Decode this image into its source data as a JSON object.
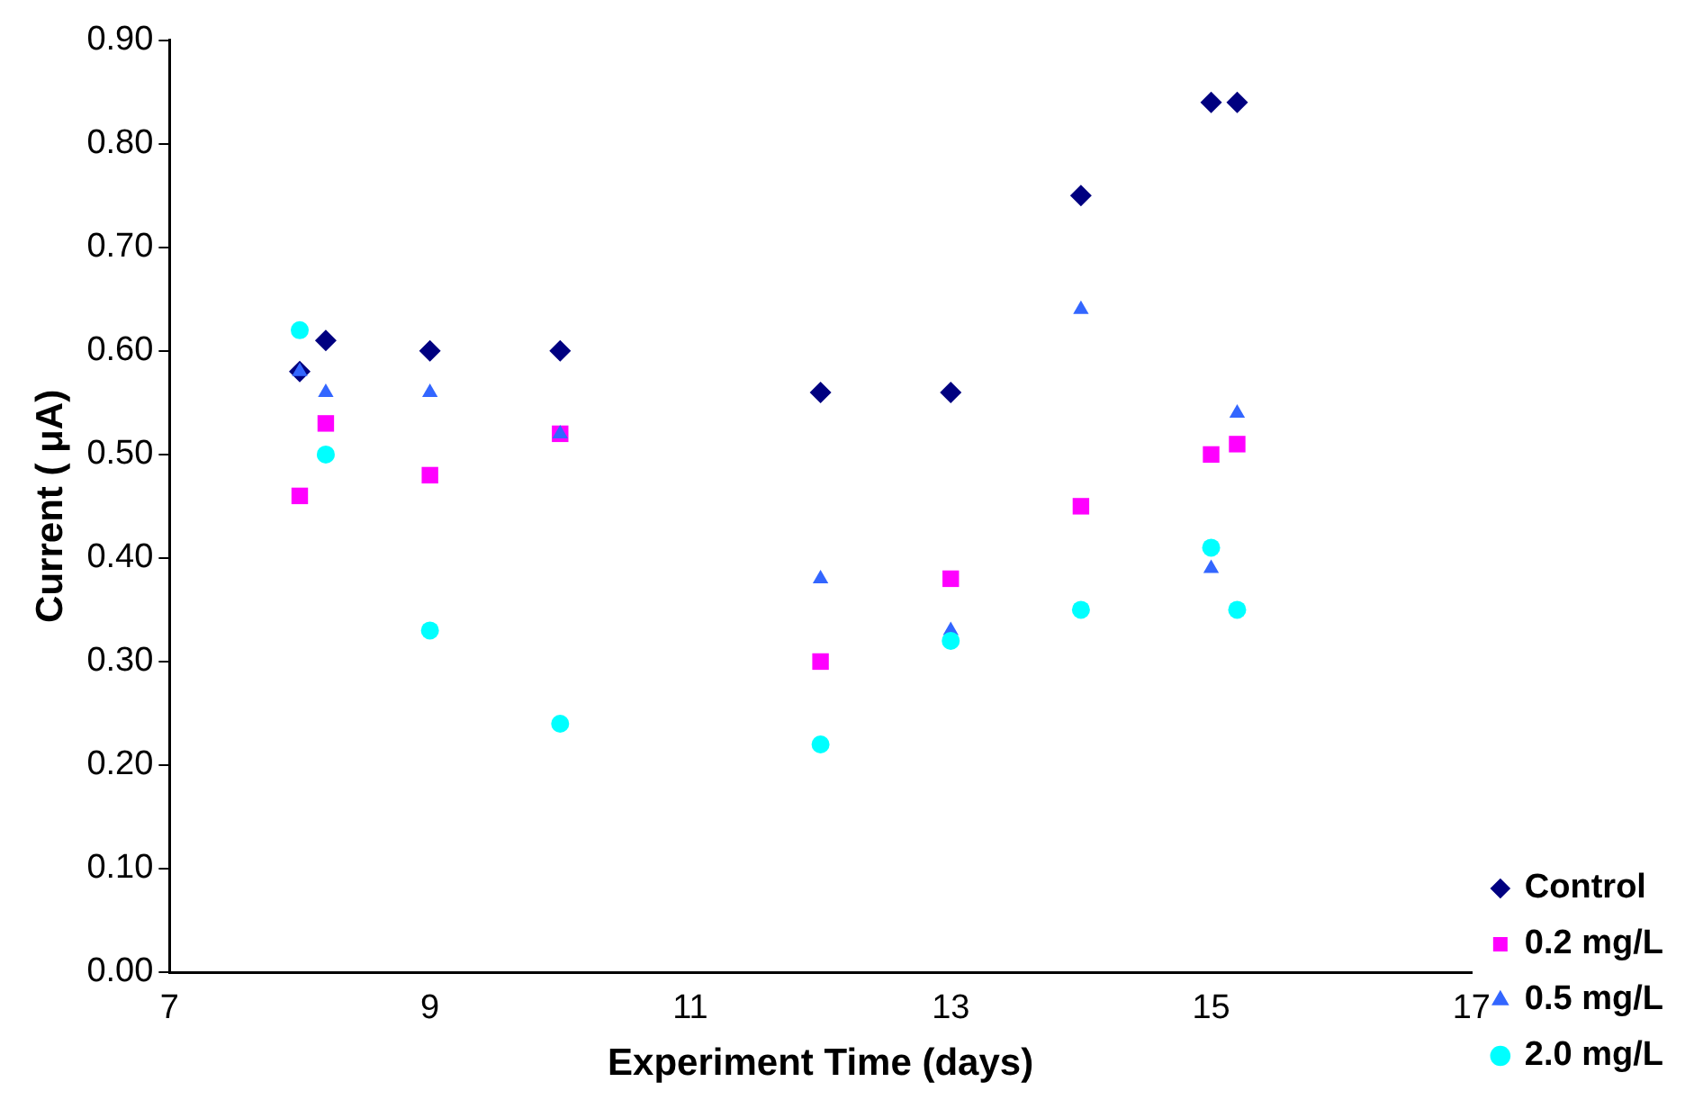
{
  "chart_data": {
    "type": "scatter",
    "xlabel": "Experiment Time (days)",
    "ylabel": "Current ( μA)",
    "x": [
      8,
      8.2,
      9,
      10,
      12,
      13,
      14,
      15,
      15.2
    ],
    "xlim": [
      7,
      17
    ],
    "xticks": [
      7,
      9,
      11,
      13,
      15,
      17
    ],
    "ylim": [
      0,
      0.9
    ],
    "yticks": [
      {
        "value": 0,
        "label": "0.00"
      },
      {
        "value": 0.1,
        "label": "0.10"
      },
      {
        "value": 0.2,
        "label": "0.20"
      },
      {
        "value": 0.3,
        "label": "0.30"
      },
      {
        "value": 0.4,
        "label": "0.40"
      },
      {
        "value": 0.5,
        "label": "0.50"
      },
      {
        "value": 0.6,
        "label": "0.60"
      },
      {
        "value": 0.7,
        "label": "0.70"
      },
      {
        "value": 0.8,
        "label": "0.80"
      },
      {
        "value": 0.9,
        "label": "0.90"
      }
    ],
    "grid": false,
    "legend": "bottom right",
    "series": [
      {
        "name": "Control",
        "color": "#000080",
        "marker": "diamond",
        "values": [
          0.58,
          0.61,
          0.6,
          0.6,
          0.56,
          0.56,
          0.75,
          0.84,
          0.84
        ]
      },
      {
        "name": "0.2 mg/L",
        "color": "#ff00ff",
        "marker": "square",
        "values": [
          0.46,
          0.53,
          0.48,
          0.52,
          0.3,
          0.38,
          0.45,
          0.5,
          0.51
        ]
      },
      {
        "name": "0.5 mg/L",
        "color": "#3366ff",
        "marker": "triangle",
        "values": [
          0.58,
          0.56,
          0.56,
          0.52,
          0.38,
          0.33,
          0.64,
          0.39,
          0.54
        ]
      },
      {
        "name": "2.0 mg/L",
        "color": "#00ffff",
        "marker": "circle",
        "values": [
          0.62,
          0.5,
          0.33,
          0.24,
          0.22,
          0.32,
          0.35,
          0.41,
          0.35
        ]
      }
    ]
  }
}
